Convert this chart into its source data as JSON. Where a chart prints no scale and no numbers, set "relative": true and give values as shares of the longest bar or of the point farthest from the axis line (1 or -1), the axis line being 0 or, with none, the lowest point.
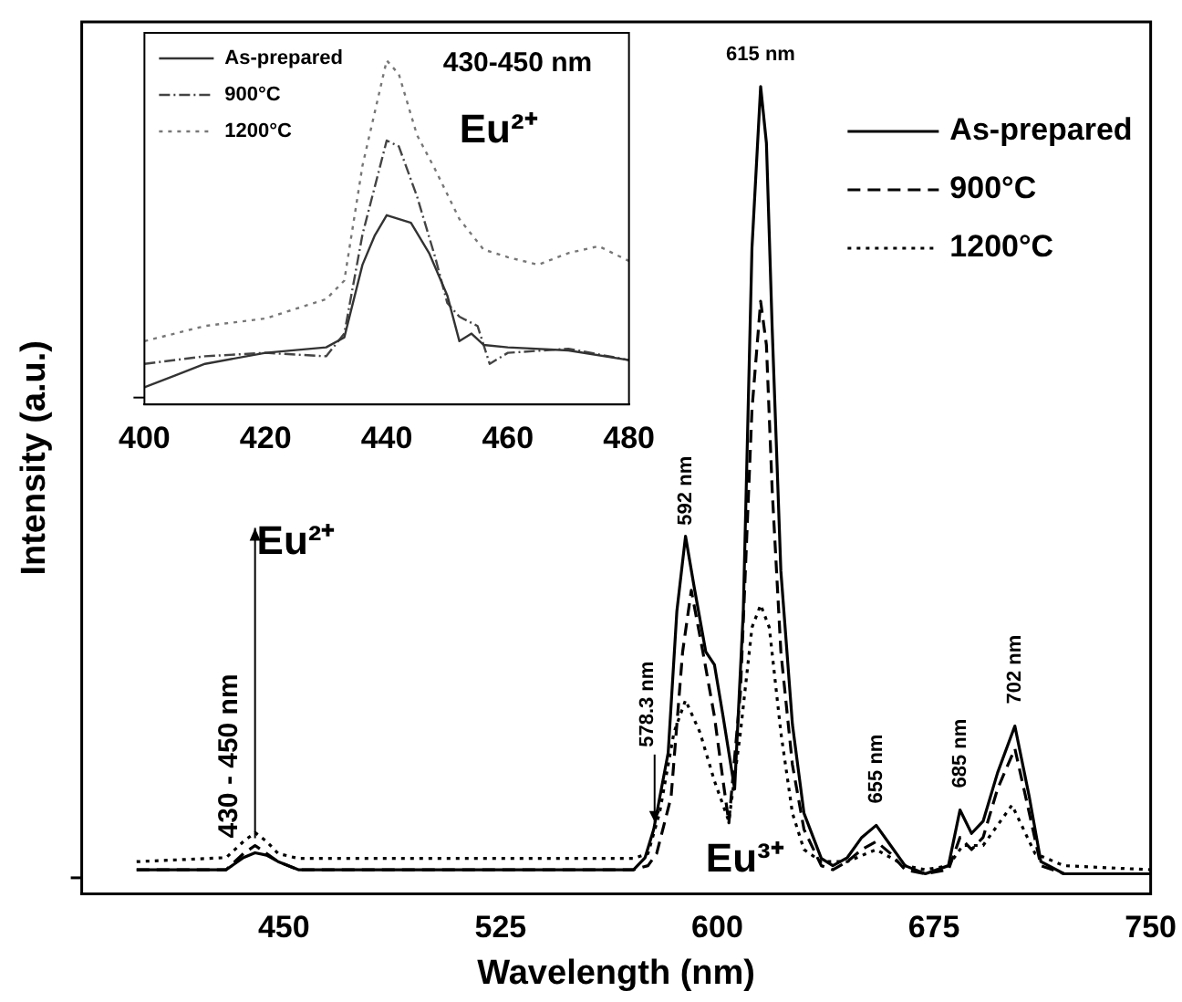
{
  "chart_data": [
    {
      "type": "line",
      "xlabel": "Wavelength (nm)",
      "ylabel": "Intensity (a.u.)",
      "relative": true,
      "xlim": [
        380,
        750
      ],
      "xticks": [
        450,
        525,
        600,
        675,
        750
      ],
      "legend": "top right",
      "marker": "none",
      "grid": false,
      "annotations": [
        {
          "text": "615 nm",
          "x": 615,
          "y": 1.0
        },
        {
          "text": "592 nm",
          "x": 589,
          "y": 0.443
        },
        {
          "text": "578.3 nm",
          "x": 578.3,
          "y": 0.08
        },
        {
          "text": "655 nm",
          "x": 655,
          "y": 0.085
        },
        {
          "text": "685 nm",
          "x": 684,
          "y": 0.104
        },
        {
          "text": "702 nm",
          "x": 703,
          "y": 0.208
        },
        {
          "text": "430 - 450 nm",
          "x": 440,
          "y": 0.06
        },
        "Eu²⁺",
        "Eu³⁺"
      ],
      "series": [
        {
          "name": "As-prepared",
          "color": "#000000",
          "line_style": "solid",
          "x": [
            399,
            430,
            436,
            440,
            444,
            448,
            455,
            500,
            540,
            571,
            575,
            578,
            583,
            586,
            589,
            592,
            596,
            599,
            602,
            606,
            609,
            612,
            615,
            617,
            619,
            622,
            626,
            630,
            636,
            640,
            645,
            650,
            655,
            660,
            665,
            672,
            680,
            684,
            688,
            692,
            697,
            703,
            708,
            712,
            720,
            750
          ],
          "values": [
            0.03,
            0.03,
            0.045,
            0.051,
            0.048,
            0.04,
            0.03,
            0.03,
            0.03,
            0.03,
            0.045,
            0.08,
            0.175,
            0.35,
            0.443,
            0.38,
            0.3,
            0.284,
            0.22,
            0.13,
            0.35,
            0.8,
            1.0,
            0.93,
            0.7,
            0.4,
            0.21,
            0.1,
            0.044,
            0.035,
            0.045,
            0.07,
            0.085,
            0.06,
            0.035,
            0.025,
            0.035,
            0.104,
            0.075,
            0.09,
            0.15,
            0.208,
            0.12,
            0.04,
            0.025,
            0.025
          ]
        },
        {
          "name": "900°C",
          "color": "#000000",
          "line_style": "dashed",
          "x": [
            399,
            430,
            436,
            440,
            444,
            448,
            455,
            500,
            540,
            571,
            576,
            579,
            584,
            588,
            591,
            595,
            599,
            602,
            604,
            608,
            612,
            615,
            617,
            619,
            622,
            626,
            630,
            636,
            640,
            645,
            650,
            655,
            660,
            665,
            672,
            680,
            684,
            688,
            692,
            697,
            703,
            708,
            712,
            720,
            750
          ],
          "values": [
            0.03,
            0.03,
            0.05,
            0.06,
            0.05,
            0.04,
            0.03,
            0.03,
            0.03,
            0.03,
            0.035,
            0.05,
            0.12,
            0.3,
            0.376,
            0.3,
            0.22,
            0.14,
            0.088,
            0.25,
            0.6,
            0.734,
            0.68,
            0.5,
            0.3,
            0.16,
            0.08,
            0.035,
            0.03,
            0.04,
            0.055,
            0.065,
            0.05,
            0.03,
            0.025,
            0.03,
            0.07,
            0.055,
            0.07,
            0.13,
            0.18,
            0.1,
            0.035,
            0.025,
            0.025
          ]
        },
        {
          "name": "1200°C",
          "color": "#000000",
          "line_style": "dotted",
          "x": [
            399,
            430,
            436,
            440,
            444,
            448,
            455,
            500,
            540,
            571,
            576,
            580,
            585,
            589,
            594,
            599,
            604,
            608,
            612,
            615,
            618,
            622,
            626,
            630,
            636,
            645,
            655,
            665,
            672,
            680,
            685,
            692,
            702,
            710,
            720,
            750
          ],
          "values": [
            0.04,
            0.045,
            0.065,
            0.076,
            0.065,
            0.05,
            0.044,
            0.044,
            0.044,
            0.044,
            0.05,
            0.1,
            0.2,
            0.24,
            0.2,
            0.14,
            0.09,
            0.2,
            0.33,
            0.358,
            0.33,
            0.2,
            0.1,
            0.055,
            0.04,
            0.04,
            0.055,
            0.035,
            0.03,
            0.035,
            0.06,
            0.06,
            0.11,
            0.05,
            0.035,
            0.03
          ]
        }
      ]
    },
    {
      "type": "line",
      "relative": true,
      "xlim": [
        400,
        480
      ],
      "xticks": [
        400,
        420,
        440,
        460,
        480
      ],
      "legend": "top left",
      "marker": "none",
      "grid": false,
      "annotations": [
        "430-450 nm",
        "Eu²⁺"
      ],
      "series": [
        {
          "name": "As-prepared",
          "color": "#333333",
          "line_style": "solid",
          "x": [
            400,
            405,
            410,
            420,
            430,
            433,
            436,
            438,
            440,
            444,
            447,
            450,
            452,
            454,
            456,
            460,
            470,
            480
          ],
          "values": [
            0.05,
            0.084,
            0.118,
            0.15,
            0.166,
            0.195,
            0.406,
            0.49,
            0.55,
            0.528,
            0.44,
            0.317,
            0.184,
            0.206,
            0.173,
            0.166,
            0.157,
            0.129
          ]
        },
        {
          "name": "900°C",
          "color": "#444444",
          "line_style": "dashdot",
          "x": [
            400,
            410,
            420,
            430,
            433,
            436,
            440,
            442,
            445,
            448,
            450,
            452,
            455,
            457,
            460,
            470,
            480
          ],
          "values": [
            0.118,
            0.14,
            0.15,
            0.14,
            0.206,
            0.494,
            0.767,
            0.75,
            0.605,
            0.428,
            0.295,
            0.255,
            0.228,
            0.118,
            0.15,
            0.162,
            0.129
          ]
        },
        {
          "name": "1200°C",
          "color": "#777777",
          "line_style": "dotted",
          "x": [
            400,
            410,
            420,
            430,
            433,
            436,
            440,
            442,
            445,
            448,
            452,
            456,
            460,
            465,
            470,
            475,
            480
          ],
          "values": [
            0.184,
            0.228,
            0.25,
            0.306,
            0.36,
            0.694,
            1.0,
            0.96,
            0.783,
            0.683,
            0.539,
            0.45,
            0.428,
            0.406,
            0.44,
            0.46,
            0.417
          ]
        }
      ]
    }
  ]
}
